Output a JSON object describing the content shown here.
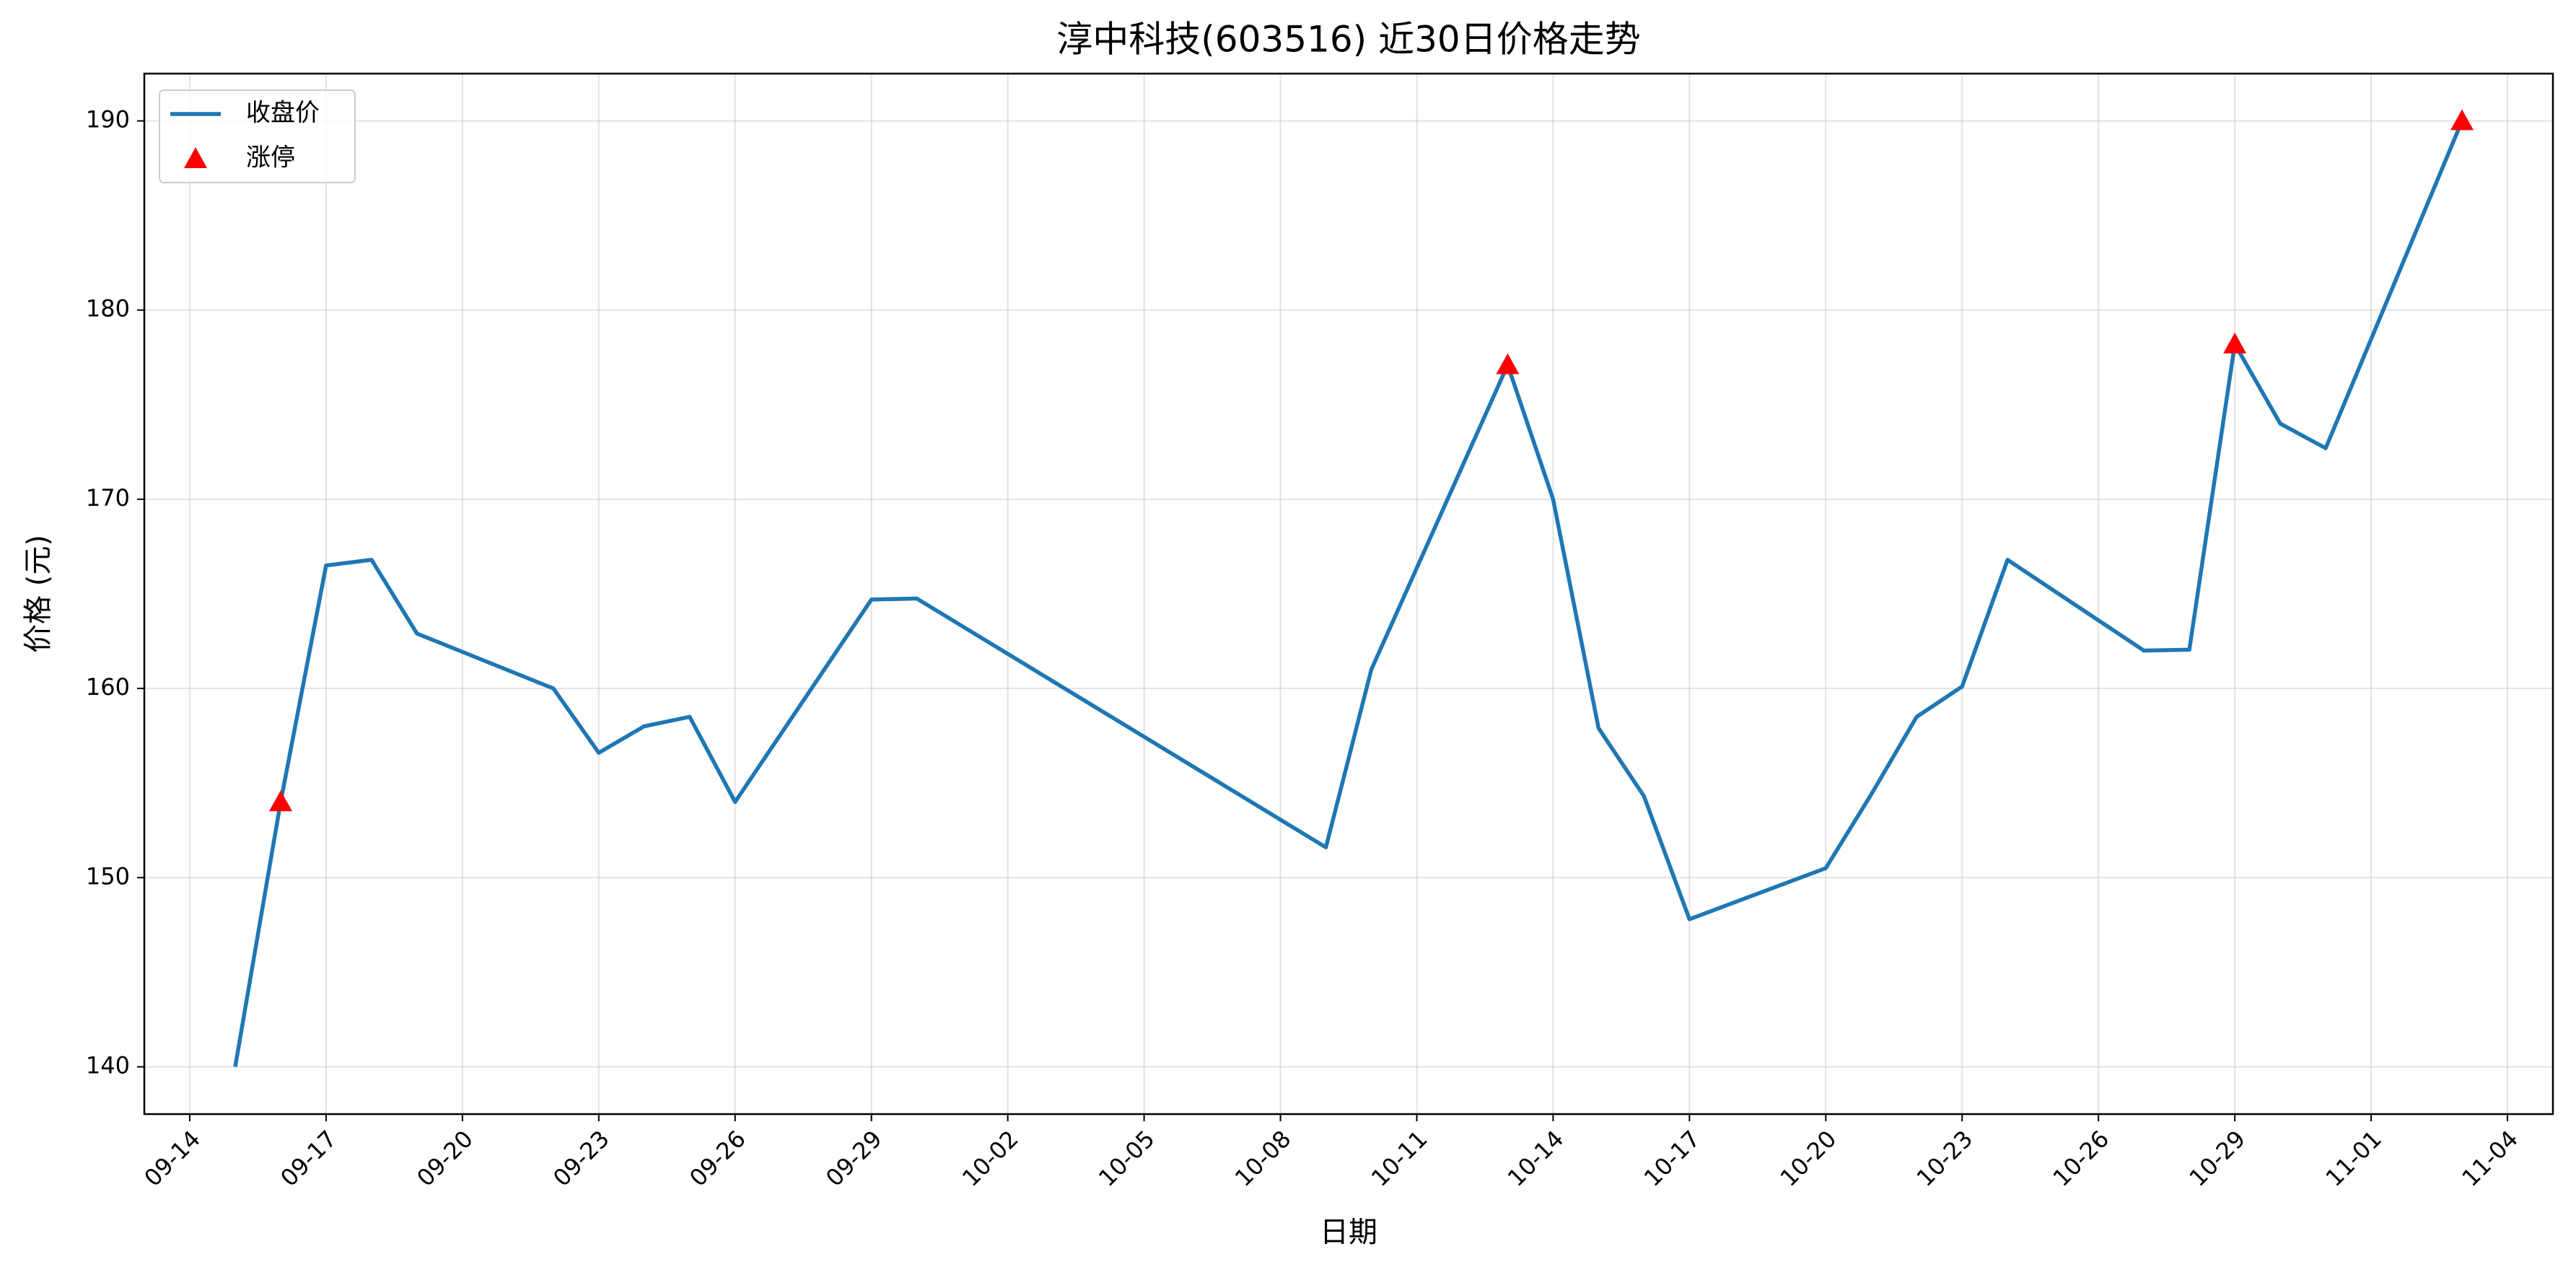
{
  "chart_data": {
    "type": "line",
    "title": "淳中科技(603516) 近30日价格走势",
    "xlabel": "日期",
    "ylabel": "价格 (元)",
    "x": [
      "09-15",
      "09-16",
      "09-17",
      "09-18",
      "09-19",
      "09-22",
      "09-23",
      "09-24",
      "09-25",
      "09-26",
      "09-29",
      "09-30",
      "10-09",
      "10-10",
      "10-13",
      "10-14",
      "10-15",
      "10-16",
      "10-17",
      "10-20",
      "10-21",
      "10-22",
      "10-23",
      "10-24",
      "10-27",
      "10-28",
      "10-29",
      "10-30",
      "10-31",
      "11-03"
    ],
    "series": [
      {
        "name": "收盘价",
        "type": "line",
        "color": "#1f77b4",
        "values": [
          140.0,
          154.0,
          166.5,
          166.8,
          162.9,
          160.0,
          156.6,
          158.0,
          158.5,
          154.0,
          164.7,
          164.75,
          151.6,
          161.0,
          177.1,
          170.0,
          157.9,
          154.3,
          147.8,
          150.5,
          154.4,
          158.5,
          160.1,
          166.8,
          162.0,
          162.05,
          178.2,
          174.0,
          172.7,
          190.0
        ]
      },
      {
        "name": "涨停",
        "type": "scatter",
        "marker": "triangle",
        "color": "#ff0000",
        "x": [
          "09-16",
          "10-13",
          "10-29",
          "11-03"
        ],
        "values": [
          154.0,
          177.1,
          178.2,
          190.0
        ]
      }
    ],
    "xlim": [
      "09-13",
      "11-05"
    ],
    "xticks": [
      "09-14",
      "09-17",
      "09-20",
      "09-23",
      "09-26",
      "09-29",
      "10-02",
      "10-05",
      "10-08",
      "10-11",
      "10-14",
      "10-17",
      "10-20",
      "10-23",
      "10-26",
      "10-29",
      "11-01",
      "11-04"
    ],
    "ylim": [
      137.5,
      192.5
    ],
    "yticks": [
      140,
      150,
      160,
      170,
      180,
      190
    ],
    "grid": true,
    "legend": "upper left"
  }
}
